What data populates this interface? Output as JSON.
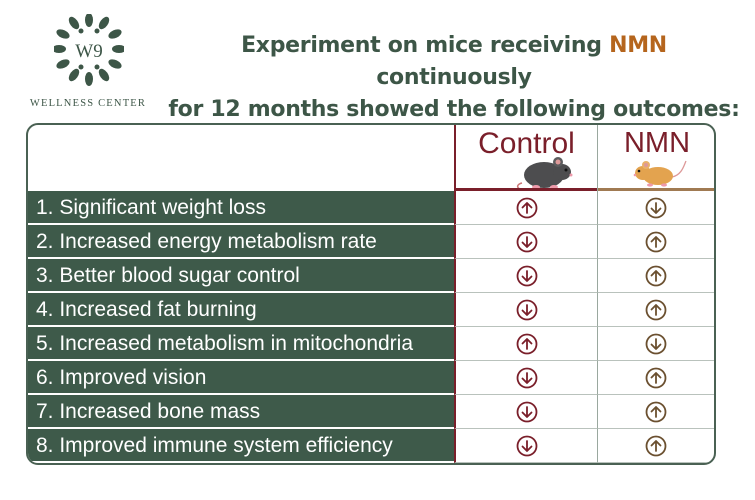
{
  "brand": {
    "logo_text": "W9",
    "name": "WELLNESS CENTER",
    "color": "#3d5647"
  },
  "headline": {
    "line1_before": "Experiment on mice receiving ",
    "line1_highlight": "NMN",
    "line1_after": " continuously",
    "line2": "for 12 months showed the following outcomes:",
    "highlight_color": "#b5651d"
  },
  "table": {
    "columns": {
      "control": "Control",
      "nmn": "NMN"
    },
    "rows": [
      {
        "label": "1. Significant weight loss",
        "control": "up",
        "nmn": "down"
      },
      {
        "label": "2. Increased energy metabolism rate",
        "control": "down",
        "nmn": "up"
      },
      {
        "label": "3. Better blood sugar control",
        "control": "down",
        "nmn": "up"
      },
      {
        "label": "4. Increased fat burning",
        "control": "down",
        "nmn": "up"
      },
      {
        "label": "5. Increased metabolism in mitochondria",
        "control": "up",
        "nmn": "down"
      },
      {
        "label": "6. Improved vision",
        "control": "down",
        "nmn": "up"
      },
      {
        "label": "7. Increased bone mass",
        "control": "down",
        "nmn": "up"
      },
      {
        "label": "8. Improved immune system efficiency",
        "control": "down",
        "nmn": "up"
      }
    ],
    "colors": {
      "row_fill": "#3e5a4a",
      "control_accent": "#7a1f2a",
      "nmn_arrow": "#6b5030"
    },
    "icons": {
      "control_header": "gray-mouse-icon",
      "nmn_header": "orange-mouse-icon",
      "up": "circle-arrow-up-icon",
      "down": "circle-arrow-down-icon"
    }
  }
}
